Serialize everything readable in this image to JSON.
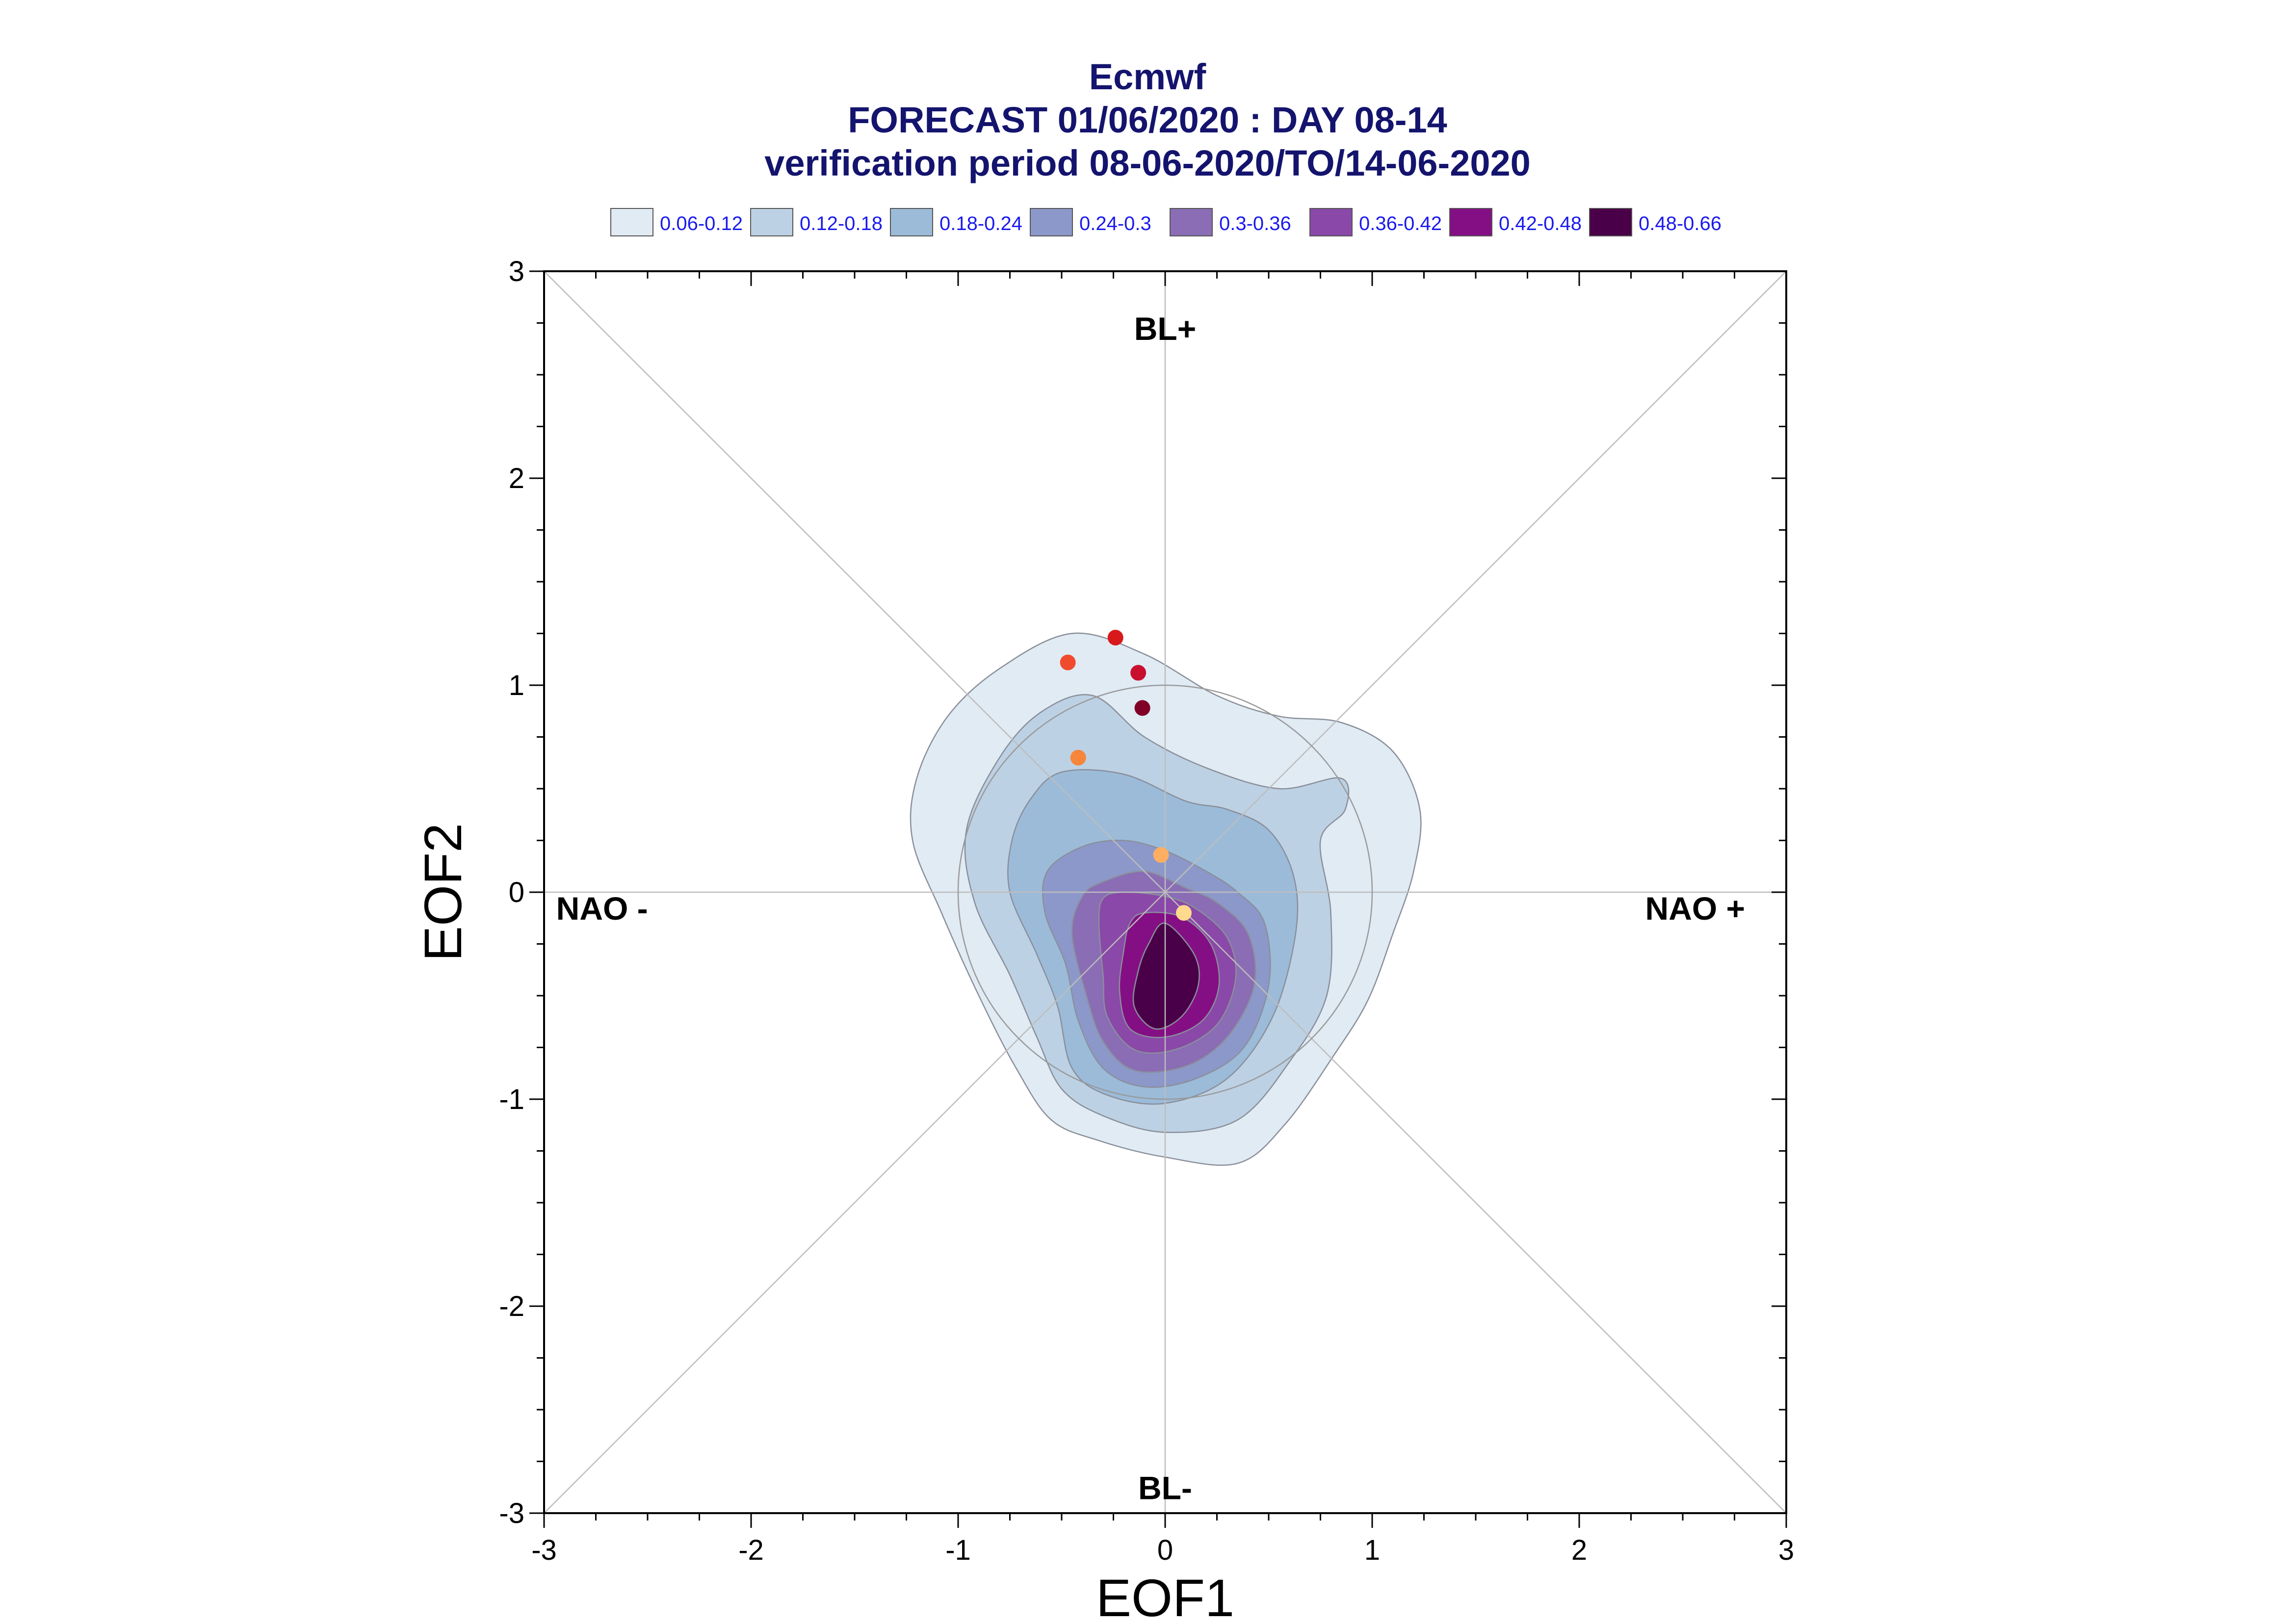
{
  "chart_data": {
    "type": "contour",
    "title": "Ecmwf",
    "subtitle_lines": [
      "FORECAST 01/06/2020 : DAY 08-14",
      "verification period 08-06-2020/TO/14-06-2020"
    ],
    "xlabel": "EOF1",
    "ylabel": "EOF2",
    "xlim": [
      -3,
      3
    ],
    "ylim": [
      -3,
      3
    ],
    "xticks": [
      "-3",
      "-2",
      "-1",
      "0",
      "1",
      "2",
      "3"
    ],
    "yticks": [
      "-3",
      "-2",
      "-1",
      "0",
      "1",
      "2",
      "3"
    ],
    "grid": "diagonals and zero axes",
    "legend_placement": "top",
    "legend": [
      {
        "label": "0.06-0.12",
        "color": "#e0ebf4"
      },
      {
        "label": "0.12-0.18",
        "color": "#bdd1e4"
      },
      {
        "label": "0.18-0.24",
        "color": "#9bbbd9"
      },
      {
        "label": "0.24-0.3",
        "color": "#8c98c9"
      },
      {
        "label": "0.3-0.36",
        "color": "#8a6db5"
      },
      {
        "label": "0.36-0.42",
        "color": "#8a48a8"
      },
      {
        "label": "0.42-0.48",
        "color": "#840f85"
      },
      {
        "label": "0.48-0.66",
        "color": "#4a0049"
      }
    ],
    "regime_labels": [
      {
        "text": "BL+",
        "x": 0,
        "y": 2.72
      },
      {
        "text": "BL-",
        "x": 0,
        "y": -2.88
      },
      {
        "text": "NAO -",
        "x": -2.72,
        "y": -0.08
      },
      {
        "text": "NAO +",
        "x": 2.56,
        "y": -0.08
      }
    ],
    "reference_circle_radius": 1.0,
    "contours": [
      {
        "level": "0.06-0.12",
        "color": "#e0ebf4",
        "points": [
          [
            -0.1,
            1.15
          ],
          [
            0.25,
            0.95
          ],
          [
            0.55,
            0.85
          ],
          [
            0.85,
            0.82
          ],
          [
            1.1,
            0.68
          ],
          [
            1.23,
            0.4
          ],
          [
            1.2,
            0.1
          ],
          [
            1.1,
            -0.2
          ],
          [
            0.98,
            -0.52
          ],
          [
            0.82,
            -0.78
          ],
          [
            0.58,
            -1.12
          ],
          [
            0.35,
            -1.31
          ],
          [
            0.0,
            -1.28
          ],
          [
            -0.32,
            -1.2
          ],
          [
            -0.55,
            -1.1
          ],
          [
            -0.72,
            -0.85
          ],
          [
            -0.9,
            -0.5
          ],
          [
            -1.08,
            -0.1
          ],
          [
            -1.22,
            0.25
          ],
          [
            -1.2,
            0.55
          ],
          [
            -1.05,
            0.85
          ],
          [
            -0.8,
            1.08
          ],
          [
            -0.45,
            1.25
          ]
        ]
      },
      {
        "level": "0.12-0.18",
        "color": "#bdd1e4",
        "points": [
          [
            -0.35,
            0.95
          ],
          [
            -0.1,
            0.75
          ],
          [
            0.2,
            0.6
          ],
          [
            0.55,
            0.5
          ],
          [
            0.85,
            0.55
          ],
          [
            0.87,
            0.4
          ],
          [
            0.75,
            0.25
          ],
          [
            0.8,
            -0.1
          ],
          [
            0.78,
            -0.5
          ],
          [
            0.6,
            -0.82
          ],
          [
            0.35,
            -1.1
          ],
          [
            0.0,
            -1.16
          ],
          [
            -0.3,
            -1.08
          ],
          [
            -0.5,
            -0.95
          ],
          [
            -0.62,
            -0.7
          ],
          [
            -0.75,
            -0.4
          ],
          [
            -0.92,
            -0.05
          ],
          [
            -0.96,
            0.3
          ],
          [
            -0.8,
            0.65
          ],
          [
            -0.6,
            0.87
          ]
        ]
      },
      {
        "level": "0.18-0.24",
        "color": "#9bbbd9",
        "points": [
          [
            -0.5,
            0.58
          ],
          [
            -0.2,
            0.57
          ],
          [
            0.1,
            0.44
          ],
          [
            0.3,
            0.4
          ],
          [
            0.5,
            0.3
          ],
          [
            0.62,
            0.08
          ],
          [
            0.63,
            -0.2
          ],
          [
            0.52,
            -0.6
          ],
          [
            0.3,
            -0.9
          ],
          [
            0.0,
            -1.02
          ],
          [
            -0.28,
            -0.98
          ],
          [
            -0.45,
            -0.85
          ],
          [
            -0.52,
            -0.55
          ],
          [
            -0.62,
            -0.3
          ],
          [
            -0.75,
            0.0
          ],
          [
            -0.74,
            0.25
          ],
          [
            -0.65,
            0.45
          ]
        ]
      },
      {
        "level": "0.24-0.3",
        "color": "#8c98c9",
        "points": [
          [
            -0.4,
            0.22
          ],
          [
            -0.2,
            0.25
          ],
          [
            0.0,
            0.2
          ],
          [
            0.2,
            0.1
          ],
          [
            0.35,
            0.0
          ],
          [
            0.48,
            -0.15
          ],
          [
            0.5,
            -0.45
          ],
          [
            0.38,
            -0.75
          ],
          [
            0.15,
            -0.9
          ],
          [
            -0.1,
            -0.94
          ],
          [
            -0.3,
            -0.85
          ],
          [
            -0.42,
            -0.62
          ],
          [
            -0.48,
            -0.35
          ],
          [
            -0.58,
            -0.1
          ],
          [
            -0.57,
            0.1
          ]
        ]
      },
      {
        "level": "0.3-0.36",
        "color": "#8a6db5",
        "points": [
          [
            -0.3,
            0.05
          ],
          [
            -0.1,
            0.1
          ],
          [
            0.1,
            0.02
          ],
          [
            0.25,
            -0.05
          ],
          [
            0.4,
            -0.2
          ],
          [
            0.43,
            -0.45
          ],
          [
            0.3,
            -0.7
          ],
          [
            0.1,
            -0.84
          ],
          [
            -0.15,
            -0.86
          ],
          [
            -0.3,
            -0.72
          ],
          [
            -0.38,
            -0.5
          ],
          [
            -0.45,
            -0.2
          ],
          [
            -0.4,
            -0.02
          ]
        ]
      },
      {
        "level": "0.36-0.42",
        "color": "#8a48a8",
        "points": [
          [
            -0.2,
            0.0
          ],
          [
            0.0,
            -0.02
          ],
          [
            0.15,
            -0.08
          ],
          [
            0.3,
            -0.22
          ],
          [
            0.34,
            -0.42
          ],
          [
            0.25,
            -0.64
          ],
          [
            0.05,
            -0.76
          ],
          [
            -0.15,
            -0.76
          ],
          [
            -0.28,
            -0.6
          ],
          [
            -0.3,
            -0.4
          ],
          [
            -0.32,
            -0.15
          ],
          [
            -0.3,
            -0.03
          ]
        ]
      },
      {
        "level": "0.42-0.48",
        "color": "#840f85",
        "points": [
          [
            -0.1,
            -0.1
          ],
          [
            0.08,
            -0.12
          ],
          [
            0.22,
            -0.25
          ],
          [
            0.26,
            -0.45
          ],
          [
            0.18,
            -0.62
          ],
          [
            0.0,
            -0.7
          ],
          [
            -0.17,
            -0.66
          ],
          [
            -0.22,
            -0.48
          ],
          [
            -0.2,
            -0.28
          ],
          [
            -0.17,
            -0.15
          ]
        ]
      },
      {
        "level": "0.48-0.66",
        "color": "#4a0049",
        "points": [
          [
            0.0,
            -0.15
          ],
          [
            0.14,
            -0.3
          ],
          [
            0.16,
            -0.45
          ],
          [
            0.08,
            -0.6
          ],
          [
            -0.05,
            -0.66
          ],
          [
            -0.15,
            -0.55
          ],
          [
            -0.13,
            -0.38
          ],
          [
            -0.08,
            -0.25
          ]
        ]
      }
    ],
    "trajectory_points": [
      {
        "x": -0.24,
        "y": 1.23,
        "color": "#d7191c"
      },
      {
        "x": -0.47,
        "y": 1.11,
        "color": "#f04b2d"
      },
      {
        "x": -0.13,
        "y": 1.06,
        "color": "#c8102e"
      },
      {
        "x": -0.11,
        "y": 0.89,
        "color": "#800026"
      },
      {
        "x": -0.42,
        "y": 0.65,
        "color": "#f7863a"
      },
      {
        "x": -0.02,
        "y": 0.18,
        "color": "#fdae61"
      },
      {
        "x": 0.09,
        "y": -0.1,
        "color": "#fed98e"
      }
    ]
  }
}
